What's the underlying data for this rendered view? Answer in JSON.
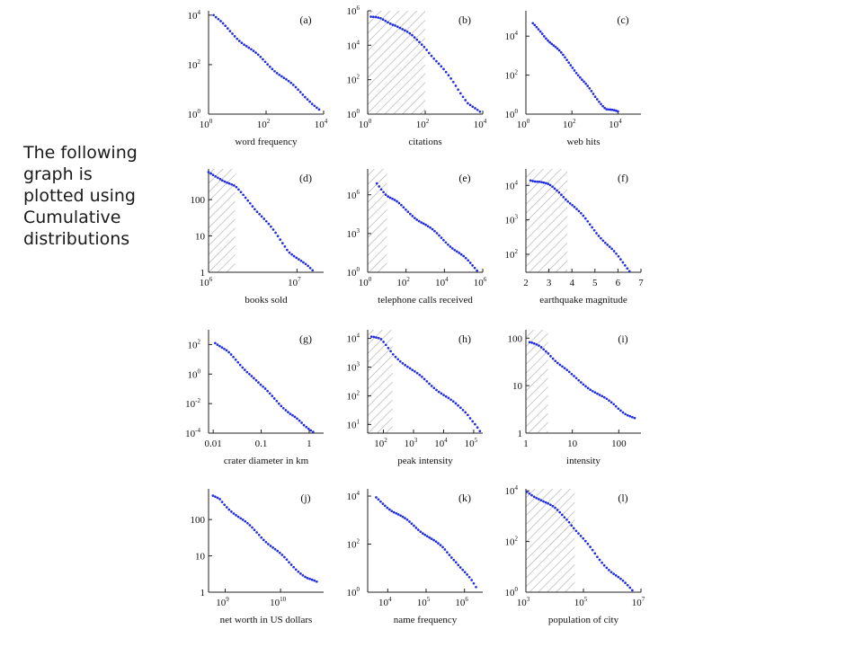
{
  "caption": "The following\ngraph is\nplotted using\nCumulative\ndistributions",
  "colors": {
    "points": "#1f2be0",
    "axis": "#222222",
    "hatch": "#b5b5b5"
  },
  "chart_data": [
    {
      "panel": "(a)",
      "type": "scatter",
      "xlabel": "word frequency",
      "xscale": "log",
      "yscale": "log",
      "xlim": [
        1,
        10000
      ],
      "ylim": [
        1,
        15000
      ],
      "xticks": [
        {
          "v": 1,
          "b": "10",
          "e": "0"
        },
        {
          "v": 100,
          "b": "10",
          "e": "2"
        },
        {
          "v": 10000,
          "b": "10",
          "e": "4"
        }
      ],
      "yticks": [
        {
          "v": 1,
          "b": "10",
          "e": "0"
        },
        {
          "v": 100,
          "b": "10",
          "e": "2"
        },
        {
          "v": 10000,
          "b": "10",
          "e": "4"
        }
      ],
      "shade": null,
      "curve": [
        [
          1.5,
          10000
        ],
        [
          2,
          7000
        ],
        [
          5,
          2500
        ],
        [
          10,
          1200
        ],
        [
          30,
          400
        ],
        [
          100,
          120
        ],
        [
          300,
          40
        ],
        [
          1000,
          12
        ],
        [
          3000,
          4
        ],
        [
          7000,
          1.5
        ]
      ]
    },
    {
      "panel": "(b)",
      "type": "scatter",
      "xlabel": "citations",
      "xscale": "log",
      "yscale": "log",
      "xlim": [
        1,
        10000
      ],
      "ylim": [
        1,
        1000000
      ],
      "xticks": [
        {
          "v": 1,
          "b": "10",
          "e": "0"
        },
        {
          "v": 100,
          "b": "10",
          "e": "2"
        },
        {
          "v": 10000,
          "b": "10",
          "e": "4"
        }
      ],
      "yticks": [
        {
          "v": 1,
          "b": "10",
          "e": "0"
        },
        {
          "v": 100,
          "b": "10",
          "e": "2"
        },
        {
          "v": 10000,
          "b": "10",
          "e": "4"
        },
        {
          "v": 1000000,
          "b": "10",
          "e": "6"
        }
      ],
      "shade": [
        1,
        100
      ],
      "curve": [
        [
          1.3,
          400000
        ],
        [
          3,
          330000
        ],
        [
          10,
          150000
        ],
        [
          30,
          40000
        ],
        [
          100,
          8000
        ],
        [
          300,
          800
        ],
        [
          1000,
          60
        ],
        [
          3000,
          5
        ],
        [
          8000,
          1.2
        ]
      ]
    },
    {
      "panel": "(c)",
      "type": "scatter",
      "xlabel": "web hits",
      "xscale": "log",
      "yscale": "log",
      "xlim": [
        1,
        100000
      ],
      "ylim": [
        1,
        200000
      ],
      "xticks": [
        {
          "v": 1,
          "b": "10",
          "e": "0"
        },
        {
          "v": 100,
          "b": "10",
          "e": "2"
        },
        {
          "v": 10000,
          "b": "10",
          "e": "4"
        }
      ],
      "yticks": [
        {
          "v": 1,
          "b": "10",
          "e": "0"
        },
        {
          "v": 100,
          "b": "10",
          "e": "2"
        },
        {
          "v": 10000,
          "b": "10",
          "e": "4"
        }
      ],
      "shade": null,
      "curve": [
        [
          2,
          40000
        ],
        [
          5,
          15000
        ],
        [
          10,
          6000
        ],
        [
          30,
          1500
        ],
        [
          100,
          300
        ],
        [
          300,
          50
        ],
        [
          1000,
          8
        ],
        [
          3000,
          2
        ],
        [
          10000,
          1.2
        ]
      ]
    },
    {
      "panel": "(d)",
      "type": "scatter",
      "xlabel": "books sold",
      "xscale": "log",
      "yscale": "log",
      "xlim": [
        1000000,
        20000000
      ],
      "ylim": [
        1,
        700
      ],
      "xticks": [
        {
          "v": 1000000,
          "b": "10",
          "e": "6"
        },
        {
          "v": 10000000,
          "b": "10",
          "e": "7"
        }
      ],
      "yticks": [
        {
          "v": 1,
          "b": "1",
          "e": ""
        },
        {
          "v": 10,
          "b": "10",
          "e": ""
        },
        {
          "v": 100,
          "b": "100",
          "e": ""
        }
      ],
      "shade": [
        1000000,
        2000000
      ],
      "curve": [
        [
          1000000,
          550
        ],
        [
          1300000,
          420
        ],
        [
          2000000,
          220
        ],
        [
          3000000,
          80
        ],
        [
          4000000,
          35
        ],
        [
          6000000,
          10
        ],
        [
          8000000,
          4
        ],
        [
          11000000,
          2
        ],
        [
          15000000,
          1.1
        ]
      ]
    },
    {
      "panel": "(e)",
      "type": "scatter",
      "xlabel": "telephone calls received",
      "xscale": "log",
      "yscale": "log",
      "xlim": [
        1,
        1000000
      ],
      "ylim": [
        1,
        100000000
      ],
      "xticks": [
        {
          "v": 1,
          "b": "10",
          "e": "0"
        },
        {
          "v": 100,
          "b": "10",
          "e": "2"
        },
        {
          "v": 10000,
          "b": "10",
          "e": "4"
        },
        {
          "v": 1000000,
          "b": "10",
          "e": "6"
        }
      ],
      "yticks": [
        {
          "v": 1,
          "b": "10",
          "e": "0"
        },
        {
          "v": 1000,
          "b": "10",
          "e": "3"
        },
        {
          "v": 1000000,
          "b": "10",
          "e": "6"
        }
      ],
      "shade": [
        1,
        10
      ],
      "curve": [
        [
          3,
          8000000
        ],
        [
          10,
          1000000
        ],
        [
          30,
          300000
        ],
        [
          100,
          60000
        ],
        [
          1000,
          5000
        ],
        [
          10000,
          300
        ],
        [
          100000,
          15
        ],
        [
          300000,
          3
        ],
        [
          500000,
          1.5
        ]
      ]
    },
    {
      "panel": "(f)",
      "type": "scatter",
      "xlabel": "earthquake magnitude",
      "xscale": "linear",
      "yscale": "log",
      "xlim": [
        2,
        7
      ],
      "ylim": [
        30,
        30000
      ],
      "xticks": [
        {
          "v": 2,
          "b": "2",
          "e": ""
        },
        {
          "v": 3,
          "b": "3",
          "e": ""
        },
        {
          "v": 4,
          "b": "4",
          "e": ""
        },
        {
          "v": 5,
          "b": "5",
          "e": ""
        },
        {
          "v": 6,
          "b": "6",
          "e": ""
        },
        {
          "v": 7,
          "b": "7",
          "e": ""
        }
      ],
      "yticks": [
        {
          "v": 100,
          "b": "10",
          "e": "2"
        },
        {
          "v": 1000,
          "b": "10",
          "e": "3"
        },
        {
          "v": 10000,
          "b": "10",
          "e": "4"
        }
      ],
      "shade": [
        2,
        3.8
      ],
      "curve": [
        [
          2.2,
          15000
        ],
        [
          2.6,
          13000
        ],
        [
          3.0,
          10000
        ],
        [
          3.5,
          6000
        ],
        [
          4.0,
          2800
        ],
        [
          4.5,
          1200
        ],
        [
          5.0,
          500
        ],
        [
          5.5,
          200
        ],
        [
          6.0,
          85
        ],
        [
          6.5,
          35
        ]
      ]
    },
    {
      "panel": "(g)",
      "type": "scatter",
      "xlabel": "crater diameter in km",
      "xscale": "log",
      "yscale": "log",
      "xlim": [
        0.008,
        2
      ],
      "ylim": [
        0.0001,
        1000
      ],
      "xticks": [
        {
          "v": 0.01,
          "b": "0.01",
          "e": ""
        },
        {
          "v": 0.1,
          "b": "0.1",
          "e": ""
        },
        {
          "v": 1,
          "b": "1",
          "e": ""
        }
      ],
      "yticks": [
        {
          "v": 0.0001,
          "b": "10",
          "e": "-4"
        },
        {
          "v": 0.01,
          "b": "10",
          "e": "-2"
        },
        {
          "v": 1,
          "b": "10",
          "e": "0"
        },
        {
          "v": 100,
          "b": "10",
          "e": "2"
        }
      ],
      "shade": null,
      "curve": [
        [
          0.011,
          150
        ],
        [
          0.02,
          30
        ],
        [
          0.03,
          8
        ],
        [
          0.06,
          1
        ],
        [
          0.1,
          0.15
        ],
        [
          0.2,
          0.02
        ],
        [
          0.4,
          0.002
        ],
        [
          0.8,
          0.0003
        ],
        [
          1.5,
          0.0001
        ]
      ]
    },
    {
      "panel": "(h)",
      "type": "scatter",
      "xlabel": "peak intensity",
      "xscale": "log",
      "yscale": "log",
      "xlim": [
        30,
        200000
      ],
      "ylim": [
        5,
        20000
      ],
      "xticks": [
        {
          "v": 100,
          "b": "10",
          "e": "2"
        },
        {
          "v": 1000,
          "b": "10",
          "e": "3"
        },
        {
          "v": 10000,
          "b": "10",
          "e": "4"
        },
        {
          "v": 100000,
          "b": "10",
          "e": "5"
        }
      ],
      "yticks": [
        {
          "v": 10,
          "b": "10",
          "e": "1"
        },
        {
          "v": 100,
          "b": "10",
          "e": "2"
        },
        {
          "v": 1000,
          "b": "10",
          "e": "3"
        },
        {
          "v": 10000,
          "b": "10",
          "e": "4"
        }
      ],
      "shade": [
        30,
        200
      ],
      "curve": [
        [
          40,
          12000
        ],
        [
          80,
          9000
        ],
        [
          200,
          3000
        ],
        [
          1000,
          700
        ],
        [
          5000,
          200
        ],
        [
          20000,
          60
        ],
        [
          60000,
          25
        ],
        [
          120000,
          10
        ],
        [
          160000,
          6
        ]
      ]
    },
    {
      "panel": "(i)",
      "type": "scatter",
      "xlabel": "intensity",
      "xscale": "log",
      "yscale": "log",
      "xlim": [
        1,
        300
      ],
      "ylim": [
        1,
        150
      ],
      "xticks": [
        {
          "v": 1,
          "b": "1",
          "e": ""
        },
        {
          "v": 10,
          "b": "10",
          "e": ""
        },
        {
          "v": 100,
          "b": "100",
          "e": ""
        }
      ],
      "yticks": [
        {
          "v": 1,
          "b": "1",
          "e": ""
        },
        {
          "v": 10,
          "b": "10",
          "e": ""
        },
        {
          "v": 100,
          "b": "100",
          "e": ""
        }
      ],
      "shade": [
        1,
        3
      ],
      "curve": [
        [
          1.2,
          80
        ],
        [
          2,
          65
        ],
        [
          3,
          50
        ],
        [
          5,
          30
        ],
        [
          10,
          16
        ],
        [
          20,
          10
        ],
        [
          40,
          6
        ],
        [
          80,
          4
        ],
        [
          150,
          2.5
        ],
        [
          220,
          2
        ]
      ]
    },
    {
      "panel": "(j)",
      "type": "scatter",
      "xlabel": "net worth in US dollars",
      "xscale": "log",
      "yscale": "log",
      "xlim": [
        500000000,
        60000000000
      ],
      "ylim": [
        1,
        700
      ],
      "xticks": [
        {
          "v": 1000000000,
          "b": "10",
          "e": "9"
        },
        {
          "v": 10000000000,
          "b": "10",
          "e": "10"
        }
      ],
      "yticks": [
        {
          "v": 1,
          "b": "1",
          "e": ""
        },
        {
          "v": 10,
          "b": "10",
          "e": ""
        },
        {
          "v": 100,
          "b": "100",
          "e": ""
        }
      ],
      "shade": null,
      "curve": [
        [
          600000000,
          420
        ],
        [
          800000000,
          350
        ],
        [
          1000000000,
          250
        ],
        [
          2000000000,
          100
        ],
        [
          4000000000,
          40
        ],
        [
          8000000000,
          15
        ],
        [
          15000000000,
          6
        ],
        [
          30000000000,
          2.5
        ],
        [
          45000000000,
          1.8
        ]
      ]
    },
    {
      "panel": "(k)",
      "type": "scatter",
      "xlabel": "name frequency",
      "xscale": "log",
      "yscale": "log",
      "xlim": [
        3000,
        3000000
      ],
      "ylim": [
        1,
        20000
      ],
      "xticks": [
        {
          "v": 10000,
          "b": "10",
          "e": "4"
        },
        {
          "v": 100000,
          "b": "10",
          "e": "5"
        },
        {
          "v": 1000000,
          "b": "10",
          "e": "6"
        }
      ],
      "yticks": [
        {
          "v": 1,
          "b": "10",
          "e": "0"
        },
        {
          "v": 100,
          "b": "10",
          "e": "2"
        },
        {
          "v": 10000,
          "b": "10",
          "e": "4"
        }
      ],
      "shade": null,
      "curve": [
        [
          5000,
          8000
        ],
        [
          10000,
          3500
        ],
        [
          30000,
          1000
        ],
        [
          100000,
          250
        ],
        [
          300000,
          60
        ],
        [
          600000,
          20
        ],
        [
          1000000,
          7
        ],
        [
          1500000,
          3
        ],
        [
          2000000,
          1.5
        ]
      ]
    },
    {
      "panel": "(l)",
      "type": "scatter",
      "xlabel": "population of city",
      "xscale": "log",
      "yscale": "log",
      "xlim": [
        1000,
        10000000
      ],
      "ylim": [
        1,
        12000
      ],
      "xticks": [
        {
          "v": 1000,
          "b": "10",
          "e": "3"
        },
        {
          "v": 100000,
          "b": "10",
          "e": "5"
        },
        {
          "v": 10000000,
          "b": "10",
          "e": "7"
        }
      ],
      "yticks": [
        {
          "v": 1,
          "b": "10",
          "e": "0"
        },
        {
          "v": 100,
          "b": "10",
          "e": "2"
        },
        {
          "v": 10000,
          "b": "10",
          "e": "4"
        }
      ],
      "shade": [
        1000,
        50000
      ],
      "curve": [
        [
          1100,
          9000
        ],
        [
          3000,
          5000
        ],
        [
          10000,
          2000
        ],
        [
          30000,
          700
        ],
        [
          100000,
          120
        ],
        [
          300000,
          25
        ],
        [
          1000000,
          6
        ],
        [
          3000000,
          2
        ],
        [
          5000000,
          1.2
        ]
      ]
    }
  ]
}
